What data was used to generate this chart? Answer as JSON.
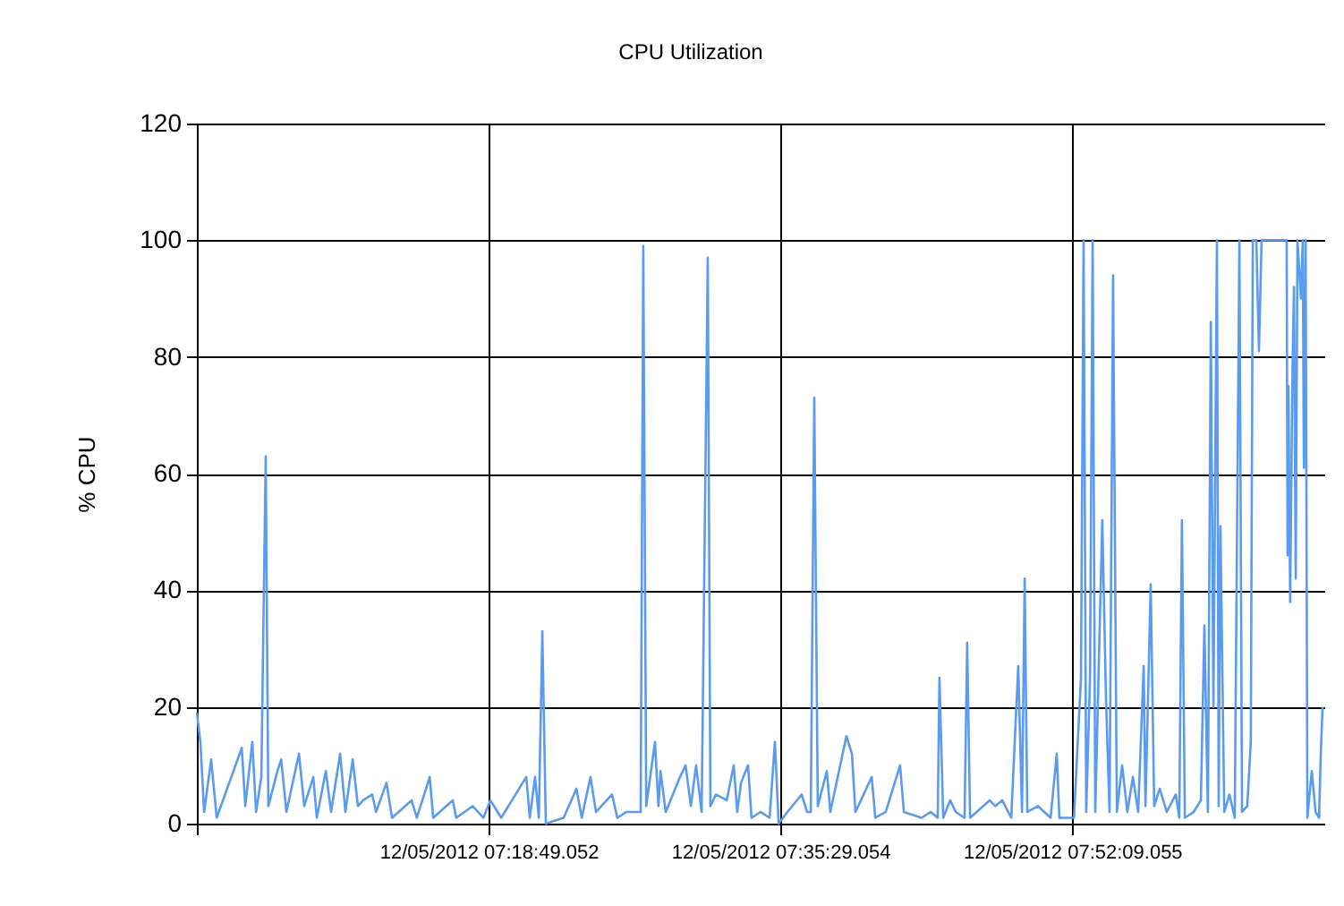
{
  "chart_data": {
    "type": "line",
    "title": "CPU Utilization",
    "ylabel": "% CPU",
    "xlim": [
      "2012-12-05T07:02:09",
      "2012-12-05T08:06:33"
    ],
    "xticks": [
      {
        "value": "2012-12-05T07:02:09",
        "label": null
      },
      {
        "value": "2012-12-05T07:18:49.052",
        "label": "12/05/2012 07:18:49.052"
      },
      {
        "value": "2012-12-05T07:35:29.054",
        "label": "12/05/2012 07:35:29.054"
      },
      {
        "value": "2012-12-05T07:52:09.055",
        "label": "12/05/2012 07:52:09.055"
      }
    ],
    "ylim": [
      0,
      120
    ],
    "yticks": [
      0,
      20,
      40,
      60,
      80,
      100,
      120
    ],
    "grid": true,
    "marker": "none",
    "line_style": "solid",
    "series": [
      {
        "color": "#5b9bef",
        "x": [
          "2012-12-05T07:02:09",
          "2012-12-05T07:02:21",
          "2012-12-05T07:02:34",
          "2012-12-05T07:02:58",
          "2012-12-05T07:03:17",
          "2012-12-05T07:04:43",
          "2012-12-05T07:04:55",
          "2012-12-05T07:05:19",
          "2012-12-05T07:05:32",
          "2012-12-05T07:05:50",
          "2012-12-05T07:06:05",
          "2012-12-05T07:06:14",
          "2012-12-05T07:06:45",
          "2012-12-05T07:06:58",
          "2012-12-05T07:07:16",
          "2012-12-05T07:07:59",
          "2012-12-05T07:08:17",
          "2012-12-05T07:08:48",
          "2012-12-05T07:09:00",
          "2012-12-05T07:09:31",
          "2012-12-05T07:09:49",
          "2012-12-05T07:10:20",
          "2012-12-05T07:10:38",
          "2012-12-05T07:11:03",
          "2012-12-05T07:11:21",
          "2012-12-05T07:11:39",
          "2012-12-05T07:12:10",
          "2012-12-05T07:12:23",
          "2012-12-05T07:12:59",
          "2012-12-05T07:13:18",
          "2012-12-05T07:14:25",
          "2012-12-05T07:14:43",
          "2012-12-05T07:15:27",
          "2012-12-05T07:15:39",
          "2012-12-05T07:16:46",
          "2012-12-05T07:16:58",
          "2012-12-05T07:17:54",
          "2012-12-05T07:18:31",
          "2012-12-05T07:18:55",
          "2012-12-05T07:19:32",
          "2012-12-05T07:20:58",
          "2012-12-05T07:21:10",
          "2012-12-05T07:21:28",
          "2012-12-05T07:21:41",
          "2012-12-05T07:21:53",
          "2012-12-05T07:22:05",
          "2012-12-05T07:23:06",
          "2012-12-05T07:23:50",
          "2012-12-05T07:24:08",
          "2012-12-05T07:24:38",
          "2012-12-05T07:24:57",
          "2012-12-05T07:25:52",
          "2012-12-05T07:26:10",
          "2012-12-05T07:26:41",
          "2012-12-05T07:27:30",
          "2012-12-05T07:27:39",
          "2012-12-05T07:27:49",
          "2012-12-05T07:28:19",
          "2012-12-05T07:28:31",
          "2012-12-05T07:28:38",
          "2012-12-05T07:28:56",
          "2012-12-05T07:29:45",
          "2012-12-05T07:30:04",
          "2012-12-05T07:30:22",
          "2012-12-05T07:30:40",
          "2012-12-05T07:30:59",
          "2012-12-05T07:31:20",
          "2012-12-05T07:31:29",
          "2012-12-05T07:31:48",
          "2012-12-05T07:32:25",
          "2012-12-05T07:32:49",
          "2012-12-05T07:33:01",
          "2012-12-05T07:33:14",
          "2012-12-05T07:33:38",
          "2012-12-05T07:33:50",
          "2012-12-05T07:34:21",
          "2012-12-05T07:34:52",
          "2012-12-05T07:35:10",
          "2012-12-05T07:35:23",
          "2012-12-05T07:35:53",
          "2012-12-05T07:36:42",
          "2012-12-05T07:37:00",
          "2012-12-05T07:37:13",
          "2012-12-05T07:37:25",
          "2012-12-05T07:37:37",
          "2012-12-05T07:38:08",
          "2012-12-05T07:38:20",
          "2012-12-05T07:39:15",
          "2012-12-05T07:39:34",
          "2012-12-05T07:39:46",
          "2012-12-05T07:40:42",
          "2012-12-05T07:40:54",
          "2012-12-05T07:41:30",
          "2012-12-05T07:42:19",
          "2012-12-05T07:42:32",
          "2012-12-05T07:43:33",
          "2012-12-05T07:44:04",
          "2012-12-05T07:44:28",
          "2012-12-05T07:44:34",
          "2012-12-05T07:44:47",
          "2012-12-05T07:45:11",
          "2012-12-05T07:45:30",
          "2012-12-05T07:46:00",
          "2012-12-05T07:46:09",
          "2012-12-05T07:46:19",
          "2012-12-05T07:47:26",
          "2012-12-05T07:47:45",
          "2012-12-05T07:48:09",
          "2012-12-05T07:48:40",
          "2012-12-05T07:49:04",
          "2012-12-05T07:49:17",
          "2012-12-05T07:49:26",
          "2012-12-05T07:49:35",
          "2012-12-05T07:50:12",
          "2012-12-05T07:50:55",
          "2012-12-05T07:51:16",
          "2012-12-05T07:51:25",
          "2012-12-05T07:52:15",
          "2012-12-05T07:52:39",
          "2012-12-05T07:52:48",
          "2012-12-05T07:52:57",
          "2012-12-05T07:53:10",
          "2012-12-05T07:53:19",
          "2012-12-05T07:53:28",
          "2012-12-05T07:53:52",
          "2012-12-05T07:54:05",
          "2012-12-05T07:54:17",
          "2012-12-05T07:54:29",
          "2012-12-05T07:54:42",
          "2012-12-05T07:55:00",
          "2012-12-05T07:55:18",
          "2012-12-05T07:55:37",
          "2012-12-05T07:55:55",
          "2012-12-05T07:56:14",
          "2012-12-05T07:56:20",
          "2012-12-05T07:56:38",
          "2012-12-05T07:56:50",
          "2012-12-05T07:57:09",
          "2012-12-05T07:57:33",
          "2012-12-05T07:58:04",
          "2012-12-05T07:58:16",
          "2012-12-05T07:58:25",
          "2012-12-05T07:58:35",
          "2012-12-05T07:59:05",
          "2012-12-05T07:59:30",
          "2012-12-05T07:59:42",
          "2012-12-05T07:59:54",
          "2012-12-05T08:00:04",
          "2012-12-05T08:00:13",
          "2012-12-05T08:00:25",
          "2012-12-05T08:00:31",
          "2012-12-05T08:00:37",
          "2012-12-05T08:00:50",
          "2012-12-05T08:01:08",
          "2012-12-05T08:01:26",
          "2012-12-05T08:01:42",
          "2012-12-05T08:01:51",
          "2012-12-05T08:02:09",
          "2012-12-05T08:02:21",
          "2012-12-05T08:02:28",
          "2012-12-05T08:02:40",
          "2012-12-05T08:02:49",
          "2012-12-05T08:02:58",
          "2012-12-05T08:04:24",
          "2012-12-05T08:04:27",
          "2012-12-05T08:04:30",
          "2012-12-05T08:04:36",
          "2012-12-05T08:04:43",
          "2012-12-05T08:04:49",
          "2012-12-05T08:04:55",
          "2012-12-05T08:05:01",
          "2012-12-05T08:05:13",
          "2012-12-05T08:05:19",
          "2012-12-05T08:05:23",
          "2012-12-05T08:05:29",
          "2012-12-05T08:05:35",
          "2012-12-05T08:05:50",
          "2012-12-05T08:06:03",
          "2012-12-05T08:06:15",
          "2012-12-05T08:06:21",
          "2012-12-05T08:06:27"
        ],
        "values": [
          19,
          14,
          2,
          11,
          1,
          13,
          3,
          14,
          2,
          8,
          63,
          3,
          9,
          11,
          2,
          12,
          3,
          8,
          1,
          9,
          2,
          12,
          2,
          11,
          3,
          4,
          5,
          2,
          7,
          1,
          4,
          1,
          8,
          1,
          4,
          1,
          3,
          1,
          4,
          1,
          8,
          1,
          8,
          1,
          33,
          0,
          1,
          6,
          1,
          8,
          2,
          5,
          1,
          2,
          2,
          99,
          3,
          14,
          3,
          9,
          2,
          8,
          10,
          3,
          10,
          2,
          97,
          3,
          5,
          4,
          10,
          2,
          7,
          10,
          1,
          2,
          1,
          14,
          0,
          2,
          5,
          2,
          2,
          73,
          3,
          9,
          2,
          15,
          12,
          2,
          8,
          1,
          2,
          10,
          2,
          1,
          2,
          1,
          25,
          1,
          4,
          2,
          1,
          31,
          1,
          4,
          3,
          4,
          1,
          27,
          2,
          42,
          2,
          3,
          1,
          12,
          1,
          1,
          25,
          100,
          2,
          25,
          100,
          2,
          52,
          21,
          2,
          94,
          2,
          10,
          2,
          8,
          2,
          27,
          3,
          41,
          3,
          6,
          2,
          5,
          1,
          52,
          1,
          2,
          4,
          34,
          2,
          86,
          20,
          100,
          3,
          51,
          2,
          5,
          1,
          100,
          2,
          3,
          14,
          100,
          100,
          81,
          100,
          100,
          46,
          75,
          38,
          74,
          92,
          42,
          100,
          90,
          100,
          61,
          100,
          1,
          9,
          2,
          1,
          12,
          20
        ]
      }
    ]
  }
}
